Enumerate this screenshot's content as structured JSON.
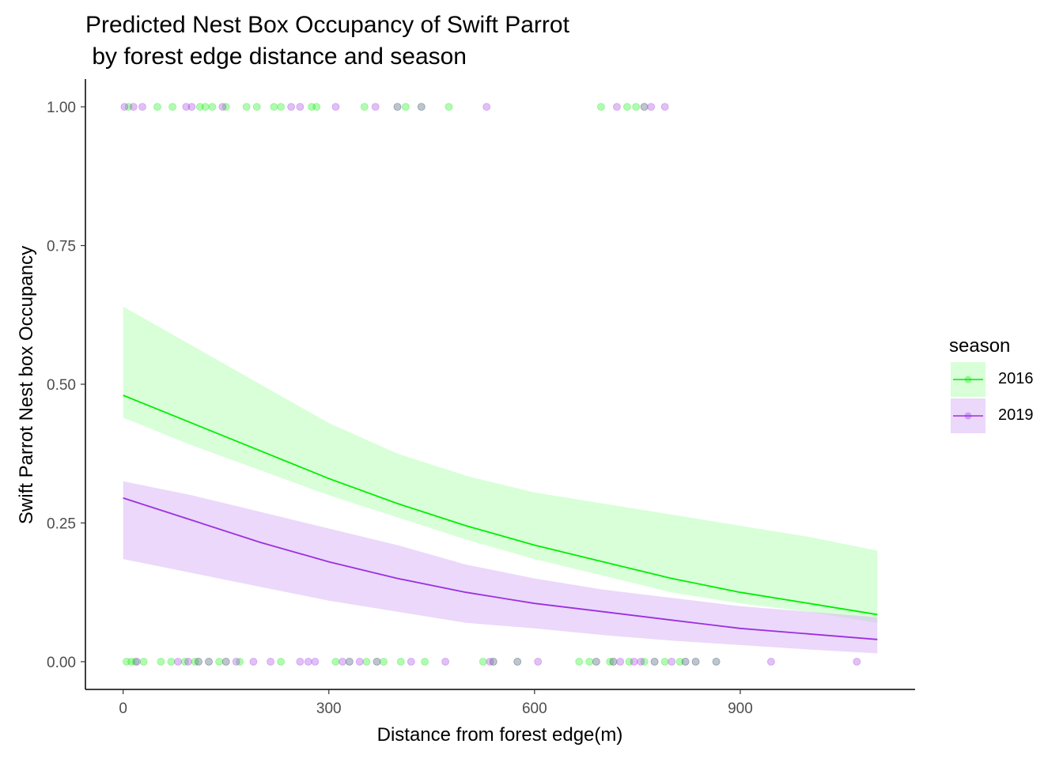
{
  "title": "Predicted Nest Box Occupancy of Swift Parrot\n by forest edge distance and season",
  "chart_data": {
    "type": "line",
    "title": "Predicted Nest Box Occupancy of Swift Parrot\n by forest edge distance and season",
    "xlabel": "Distance from forest edge(m)",
    "ylabel": "Swift Parrot Nest box Occupancy",
    "xlim": [
      -55,
      1155
    ],
    "ylim": [
      -0.05,
      1.05
    ],
    "x_ticks": [
      0,
      300,
      600,
      900
    ],
    "y_ticks": [
      0.0,
      0.25,
      0.5,
      0.75,
      1.0
    ],
    "x_tick_labels": [
      "0",
      "300",
      "600",
      "900"
    ],
    "y_tick_labels": [
      "0.00",
      "0.25",
      "0.50",
      "0.75",
      "1.00"
    ],
    "grid": false,
    "legend": {
      "title": "season",
      "position": "right"
    },
    "series": [
      {
        "name": "2016",
        "color": "#00EE00",
        "band_color": "#b8ffb8",
        "x": [
          0,
          100,
          200,
          300,
          400,
          500,
          600,
          700,
          800,
          900,
          1000,
          1100
        ],
        "fit": [
          0.48,
          0.43,
          0.38,
          0.33,
          0.285,
          0.245,
          0.21,
          0.18,
          0.15,
          0.125,
          0.105,
          0.085
        ],
        "lower": [
          0.44,
          0.39,
          0.345,
          0.3,
          0.26,
          0.22,
          0.185,
          0.155,
          0.125,
          0.105,
          0.09,
          0.07
        ],
        "upper": [
          0.64,
          0.57,
          0.5,
          0.43,
          0.375,
          0.335,
          0.305,
          0.285,
          0.265,
          0.245,
          0.225,
          0.2
        ],
        "points": [
          {
            "x": 8,
            "y": 1
          },
          {
            "x": 50,
            "y": 1
          },
          {
            "x": 72,
            "y": 1
          },
          {
            "x": 112,
            "y": 1
          },
          {
            "x": 120,
            "y": 1
          },
          {
            "x": 130,
            "y": 1
          },
          {
            "x": 150,
            "y": 1
          },
          {
            "x": 180,
            "y": 1
          },
          {
            "x": 195,
            "y": 1
          },
          {
            "x": 220,
            "y": 1
          },
          {
            "x": 230,
            "y": 1
          },
          {
            "x": 275,
            "y": 1
          },
          {
            "x": 282,
            "y": 1
          },
          {
            "x": 352,
            "y": 1
          },
          {
            "x": 412,
            "y": 1
          },
          {
            "x": 475,
            "y": 1
          },
          {
            "x": 697,
            "y": 1
          },
          {
            "x": 735,
            "y": 1
          },
          {
            "x": 748,
            "y": 1
          },
          {
            "x": 5,
            "y": 0
          },
          {
            "x": 12,
            "y": 0
          },
          {
            "x": 18,
            "y": 0
          },
          {
            "x": 30,
            "y": 0
          },
          {
            "x": 55,
            "y": 0
          },
          {
            "x": 70,
            "y": 0
          },
          {
            "x": 90,
            "y": 0
          },
          {
            "x": 105,
            "y": 0
          },
          {
            "x": 140,
            "y": 0
          },
          {
            "x": 170,
            "y": 0
          },
          {
            "x": 230,
            "y": 0
          },
          {
            "x": 310,
            "y": 0
          },
          {
            "x": 355,
            "y": 0
          },
          {
            "x": 380,
            "y": 0
          },
          {
            "x": 405,
            "y": 0
          },
          {
            "x": 440,
            "y": 0
          },
          {
            "x": 525,
            "y": 0
          },
          {
            "x": 665,
            "y": 0
          },
          {
            "x": 680,
            "y": 0
          },
          {
            "x": 710,
            "y": 0
          },
          {
            "x": 738,
            "y": 0
          },
          {
            "x": 760,
            "y": 0
          },
          {
            "x": 790,
            "y": 0
          },
          {
            "x": 812,
            "y": 0
          }
        ]
      },
      {
        "name": "2019",
        "color": "#9B30E0",
        "band_color": "#dab8f5",
        "x": [
          0,
          100,
          200,
          300,
          400,
          500,
          600,
          700,
          800,
          900,
          1000,
          1100
        ],
        "fit": [
          0.295,
          0.255,
          0.215,
          0.18,
          0.15,
          0.125,
          0.105,
          0.09,
          0.075,
          0.06,
          0.05,
          0.04
        ],
        "lower": [
          0.185,
          0.16,
          0.135,
          0.11,
          0.09,
          0.07,
          0.06,
          0.048,
          0.038,
          0.03,
          0.022,
          0.015
        ],
        "upper": [
          0.325,
          0.3,
          0.27,
          0.24,
          0.21,
          0.175,
          0.15,
          0.13,
          0.115,
          0.1,
          0.09,
          0.08
        ],
        "points": [
          {
            "x": 2,
            "y": 1
          },
          {
            "x": 15,
            "y": 1
          },
          {
            "x": 28,
            "y": 1
          },
          {
            "x": 92,
            "y": 1
          },
          {
            "x": 100,
            "y": 1
          },
          {
            "x": 145,
            "y": 1
          },
          {
            "x": 245,
            "y": 1
          },
          {
            "x": 258,
            "y": 1
          },
          {
            "x": 310,
            "y": 1
          },
          {
            "x": 368,
            "y": 1
          },
          {
            "x": 530,
            "y": 1
          },
          {
            "x": 720,
            "y": 1
          },
          {
            "x": 770,
            "y": 1
          },
          {
            "x": 790,
            "y": 1
          },
          {
            "x": 20,
            "y": 0
          },
          {
            "x": 80,
            "y": 0
          },
          {
            "x": 95,
            "y": 0
          },
          {
            "x": 165,
            "y": 0
          },
          {
            "x": 190,
            "y": 0
          },
          {
            "x": 215,
            "y": 0
          },
          {
            "x": 258,
            "y": 0
          },
          {
            "x": 270,
            "y": 0
          },
          {
            "x": 280,
            "y": 0
          },
          {
            "x": 320,
            "y": 0
          },
          {
            "x": 345,
            "y": 0
          },
          {
            "x": 420,
            "y": 0
          },
          {
            "x": 470,
            "y": 0
          },
          {
            "x": 535,
            "y": 0
          },
          {
            "x": 605,
            "y": 0
          },
          {
            "x": 725,
            "y": 0
          },
          {
            "x": 745,
            "y": 0
          },
          {
            "x": 755,
            "y": 0
          },
          {
            "x": 800,
            "y": 0
          },
          {
            "x": 945,
            "y": 0
          },
          {
            "x": 1070,
            "y": 0
          }
        ]
      }
    ],
    "overlap_points": [
      {
        "x": 400,
        "y": 1
      },
      {
        "x": 435,
        "y": 1
      },
      {
        "x": 760,
        "y": 1
      },
      {
        "x": 110,
        "y": 0
      },
      {
        "x": 125,
        "y": 0
      },
      {
        "x": 150,
        "y": 0
      },
      {
        "x": 330,
        "y": 0
      },
      {
        "x": 370,
        "y": 0
      },
      {
        "x": 540,
        "y": 0
      },
      {
        "x": 575,
        "y": 0
      },
      {
        "x": 690,
        "y": 0
      },
      {
        "x": 715,
        "y": 0
      },
      {
        "x": 775,
        "y": 0
      },
      {
        "x": 820,
        "y": 0
      },
      {
        "x": 835,
        "y": 0
      },
      {
        "x": 865,
        "y": 0
      }
    ]
  }
}
